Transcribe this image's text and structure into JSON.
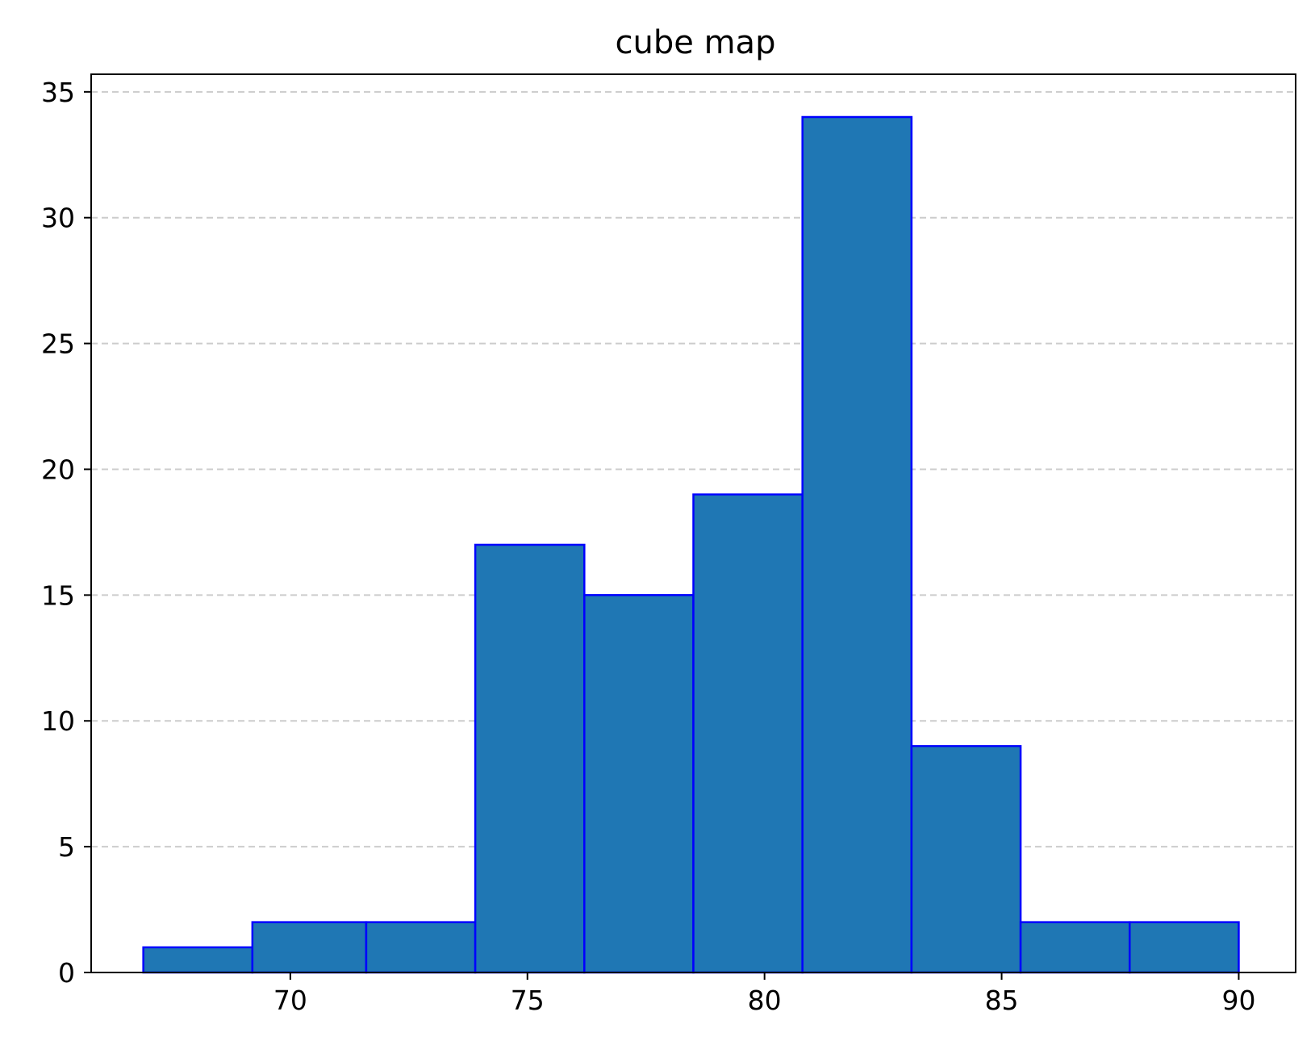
{
  "chart_data": {
    "type": "bar",
    "title": "cube map",
    "xlabel": "",
    "ylabel": "",
    "bins": [
      {
        "start": 66.9,
        "end": 69.2,
        "count": 1
      },
      {
        "start": 69.2,
        "end": 71.6,
        "count": 2
      },
      {
        "start": 71.6,
        "end": 73.9,
        "count": 2
      },
      {
        "start": 73.9,
        "end": 76.2,
        "count": 17
      },
      {
        "start": 76.2,
        "end": 78.5,
        "count": 15
      },
      {
        "start": 78.5,
        "end": 80.8,
        "count": 19
      },
      {
        "start": 80.8,
        "end": 83.1,
        "count": 34
      },
      {
        "start": 83.1,
        "end": 85.4,
        "count": 9
      },
      {
        "start": 85.4,
        "end": 87.7,
        "count": 2
      },
      {
        "start": 87.7,
        "end": 90.0,
        "count": 2
      }
    ],
    "xlim": [
      65.8,
      91.2
    ],
    "ylim": [
      0,
      35.7
    ],
    "xticks": [
      70,
      75,
      80,
      85,
      90
    ],
    "yticks": [
      0,
      5,
      10,
      15,
      20,
      25,
      30,
      35
    ],
    "grid": {
      "axis": "y",
      "style": "dashed"
    },
    "bar_fill_color": "#1f77b4",
    "bar_edge_color": "#0000ff"
  }
}
